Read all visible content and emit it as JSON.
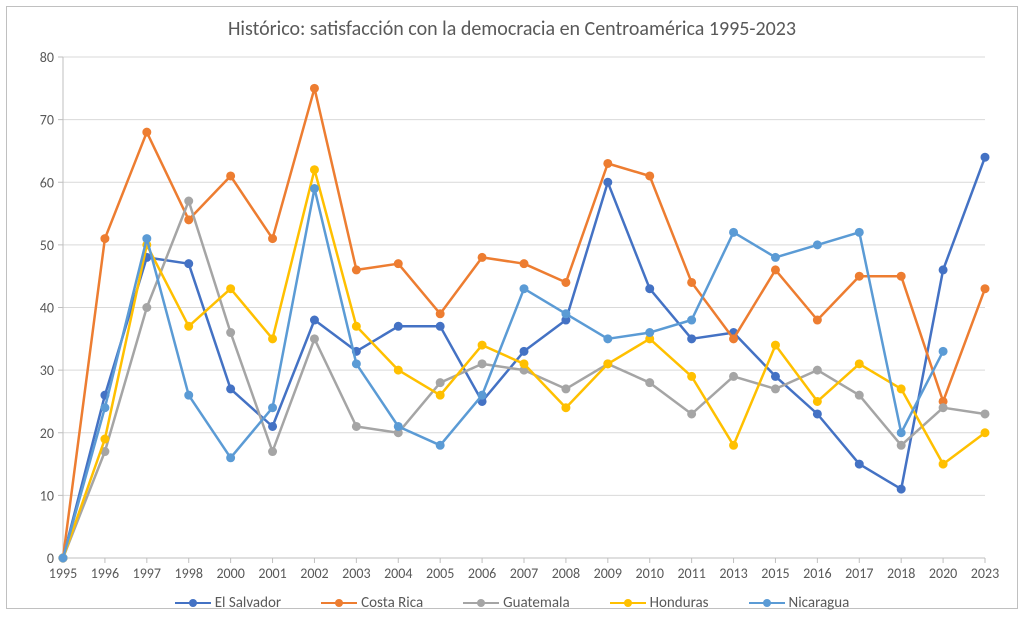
{
  "chart": {
    "type": "line",
    "title": "Histórico: satisfacción con la democracia en Centroamérica 1995-2023",
    "title_fontsize": 20,
    "title_color": "#595959",
    "background_color": "#ffffff",
    "frame_border_color": "#c0c0c0",
    "grid_color": "#d9d9d9",
    "axis_label_color": "#595959",
    "axis_label_fontsize": 14,
    "x_categories": [
      "1995",
      "1996",
      "1997",
      "1998",
      "2000",
      "2001",
      "2002",
      "2003",
      "2004",
      "2005",
      "2006",
      "2007",
      "2008",
      "2009",
      "2010",
      "2011",
      "2013",
      "2015",
      "2016",
      "2017",
      "2018",
      "2020",
      "2023"
    ],
    "ylim": [
      0,
      80
    ],
    "ytick_step": 10,
    "line_width": 2.5,
    "marker_radius": 4,
    "series": [
      {
        "name": "El Salvador",
        "color": "#4472c4",
        "marker_color": "#4472c4",
        "data": [
          0,
          26,
          48,
          47,
          27,
          21,
          38,
          33,
          37,
          37,
          25,
          33,
          38,
          60,
          43,
          35,
          36,
          29,
          23,
          15,
          11,
          46,
          64
        ]
      },
      {
        "name": "Costa Rica",
        "color": "#ed7d31",
        "marker_color": "#ed7d31",
        "data": [
          0,
          51,
          68,
          54,
          61,
          51,
          75,
          46,
          47,
          39,
          48,
          47,
          44,
          63,
          61,
          44,
          35,
          46,
          38,
          45,
          45,
          25,
          43
        ]
      },
      {
        "name": "Guatemala",
        "color": "#a5a5a5",
        "marker_color": "#a5a5a5",
        "data": [
          0,
          17,
          40,
          57,
          36,
          17,
          35,
          21,
          20,
          28,
          31,
          30,
          27,
          31,
          28,
          23,
          29,
          27,
          30,
          26,
          18,
          24,
          23
        ]
      },
      {
        "name": "Honduras",
        "color": "#ffc000",
        "marker_color": "#ffc000",
        "data": [
          0,
          19,
          50,
          37,
          43,
          35,
          62,
          37,
          30,
          26,
          34,
          31,
          24,
          31,
          35,
          29,
          18,
          34,
          25,
          31,
          27,
          15,
          20
        ]
      },
      {
        "name": "Nicaragua",
        "color": "#5b9bd5",
        "marker_color": "#5b9bd5",
        "data": [
          0,
          24,
          51,
          26,
          16,
          24,
          59,
          31,
          21,
          18,
          26,
          43,
          39,
          35,
          36,
          38,
          52,
          48,
          50,
          52,
          20,
          33,
          null
        ]
      }
    ],
    "legend": {
      "position": "bottom",
      "items": [
        "El Salvador",
        "Costa Rica",
        "Guatemala",
        "Honduras",
        "Nicaragua"
      ]
    }
  }
}
